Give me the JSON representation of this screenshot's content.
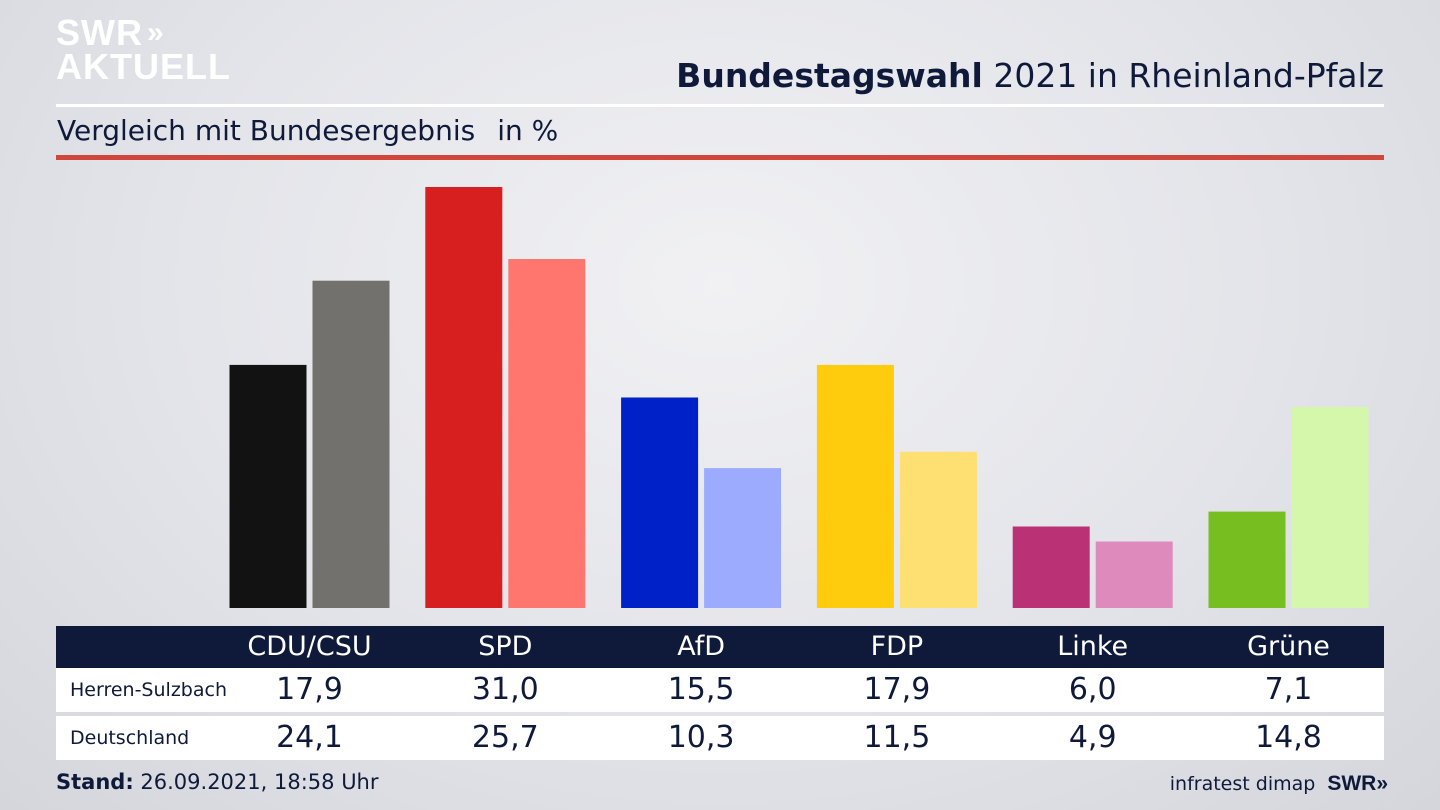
{
  "logo": {
    "line1": "SWR",
    "line2": "AKTUELL",
    "chevrons": "»"
  },
  "title": {
    "bold": "Bundestagswahl",
    "rest": "2021 in Rheinland-Pfalz"
  },
  "subtitle": {
    "text": "Vergleich mit Bundesergebnis",
    "unit": "in %"
  },
  "table": {
    "rows": [
      {
        "label": "Herren-Sulzbach",
        "values": [
          "17,9",
          "31,0",
          "15,5",
          "17,9",
          "6,0",
          "7,1"
        ]
      },
      {
        "label": "Deutschland",
        "values": [
          "24,1",
          "25,7",
          "10,3",
          "11,5",
          "4,9",
          "14,8"
        ]
      }
    ]
  },
  "footer": {
    "stand_label": "Stand:",
    "stand_value": "26.09.2021, 18:58 Uhr",
    "source": "infratest dimap",
    "brand": "SWR",
    "brand_chevrons": "»"
  },
  "chart_data": {
    "type": "bar",
    "title": "Bundestagswahl 2021 in Rheinland-Pfalz",
    "subtitle": "Vergleich mit Bundesergebnis",
    "ylabel": "in %",
    "xlabel": "",
    "ylim": [
      0,
      31.0
    ],
    "categories": [
      "CDU/CSU",
      "SPD",
      "AfD",
      "FDP",
      "Linke",
      "Grüne"
    ],
    "series": [
      {
        "name": "Herren-Sulzbach",
        "values": [
          17.9,
          31.0,
          15.5,
          17.9,
          6.0,
          7.1
        ],
        "colors": [
          "#121212",
          "#d71f1f",
          "#0020c8",
          "#fecb0d",
          "#bb3175",
          "#77be21"
        ]
      },
      {
        "name": "Deutschland",
        "values": [
          24.1,
          25.7,
          10.3,
          11.5,
          4.9,
          14.8
        ],
        "colors": [
          "#73716e",
          "#ff766f",
          "#9dabff",
          "#fde071",
          "#df8abc",
          "#d4f7ac"
        ]
      }
    ],
    "grid": false,
    "legend": "table below"
  }
}
